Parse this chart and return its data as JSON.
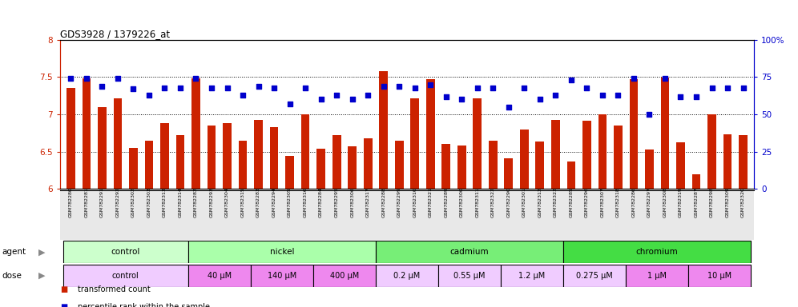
{
  "title": "GDS3928 / 1379226_at",
  "samples": [
    "GSM782280",
    "GSM782281",
    "GSM782291",
    "GSM782292",
    "GSM782302",
    "GSM782303",
    "GSM782313",
    "GSM782314",
    "GSM782282",
    "GSM782293",
    "GSM782304",
    "GSM782315",
    "GSM782283",
    "GSM782294",
    "GSM782305",
    "GSM782316",
    "GSM782284",
    "GSM782295",
    "GSM782306",
    "GSM782317",
    "GSM782288",
    "GSM782299",
    "GSM782310",
    "GSM782321",
    "GSM782289",
    "GSM782300",
    "GSM782311",
    "GSM782322",
    "GSM782290",
    "GSM782301",
    "GSM782312",
    "GSM782323",
    "GSM782285",
    "GSM782296",
    "GSM782307",
    "GSM782318",
    "GSM782286",
    "GSM782297",
    "GSM782308",
    "GSM782319",
    "GSM782287",
    "GSM782298",
    "GSM782309",
    "GSM782320"
  ],
  "bar_values": [
    7.35,
    7.48,
    7.1,
    7.21,
    6.55,
    6.65,
    6.88,
    6.72,
    7.48,
    6.85,
    6.88,
    6.65,
    6.92,
    6.83,
    6.44,
    7.0,
    6.54,
    6.72,
    6.57,
    6.68,
    7.58,
    6.65,
    7.22,
    7.47,
    6.6,
    6.58,
    7.22,
    6.65,
    6.41,
    6.8,
    6.64,
    6.92,
    6.37,
    6.91,
    7.0,
    6.85,
    7.47,
    6.53,
    7.49,
    6.62,
    6.2,
    7.0,
    6.73,
    6.72
  ],
  "percentile_values": [
    74,
    74,
    69,
    74,
    67,
    63,
    68,
    68,
    74,
    68,
    68,
    63,
    69,
    68,
    57,
    68,
    60,
    63,
    60,
    63,
    69,
    69,
    68,
    70,
    62,
    60,
    68,
    68,
    55,
    68,
    60,
    63,
    73,
    68,
    63,
    63,
    74,
    50,
    74,
    62,
    62,
    68,
    68,
    68
  ],
  "bar_color": "#cc2200",
  "dot_color": "#0000cc",
  "ylim_left": [
    6.0,
    8.0
  ],
  "ylim_right": [
    0,
    100
  ],
  "yticks_left": [
    6.0,
    6.5,
    7.0,
    7.5,
    8.0
  ],
  "yticks_right": [
    0,
    25,
    50,
    75,
    100
  ],
  "hlines": [
    6.5,
    7.0,
    7.5
  ],
  "groups_agent": [
    {
      "label": "control",
      "start": 0,
      "end": 8,
      "color": "#ccffcc"
    },
    {
      "label": "nickel",
      "start": 8,
      "end": 20,
      "color": "#aaffaa"
    },
    {
      "label": "cadmium",
      "start": 20,
      "end": 32,
      "color": "#77ee77"
    },
    {
      "label": "chromium",
      "start": 32,
      "end": 44,
      "color": "#44dd44"
    }
  ],
  "groups_dose": [
    {
      "label": "control",
      "start": 0,
      "end": 8,
      "color": "#f0ccff"
    },
    {
      "label": "40 μM",
      "start": 8,
      "end": 12,
      "color": "#ee88ee"
    },
    {
      "label": "140 μM",
      "start": 12,
      "end": 16,
      "color": "#ee88ee"
    },
    {
      "label": "400 μM",
      "start": 16,
      "end": 20,
      "color": "#ee88ee"
    },
    {
      "label": "0.2 μM",
      "start": 20,
      "end": 24,
      "color": "#f0ccff"
    },
    {
      "label": "0.55 μM",
      "start": 24,
      "end": 28,
      "color": "#f0ccff"
    },
    {
      "label": "1.2 μM",
      "start": 28,
      "end": 32,
      "color": "#f0ccff"
    },
    {
      "label": "0.275 μM",
      "start": 32,
      "end": 36,
      "color": "#f0ccff"
    },
    {
      "label": "1 μM",
      "start": 36,
      "end": 40,
      "color": "#ee88ee"
    },
    {
      "label": "10 μM",
      "start": 40,
      "end": 44,
      "color": "#ee88ee"
    }
  ],
  "legend_items": [
    {
      "color": "#cc2200",
      "label": "transformed count"
    },
    {
      "color": "#0000cc",
      "label": "percentile rank within the sample"
    }
  ],
  "background_color": "#ffffff"
}
